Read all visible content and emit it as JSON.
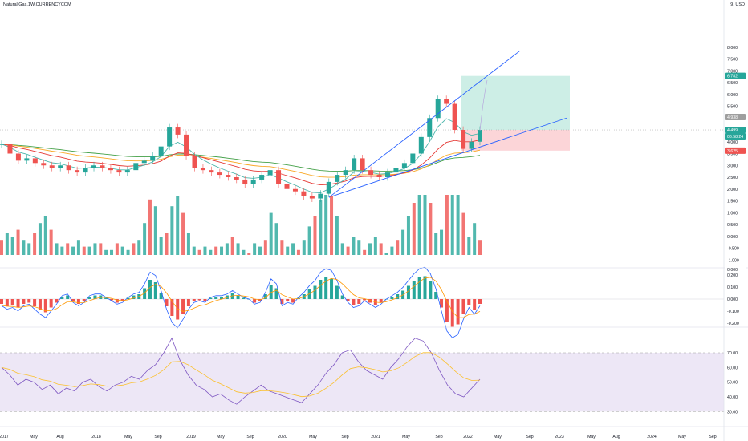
{
  "header": {
    "symbol": "Natural Gas",
    "sep1": ", ",
    "interval": "1W",
    "sep2": ", ",
    "source": "CURRENCYCOM",
    "currency": "9, USD"
  },
  "colors": {
    "up": "#26a69a",
    "down": "#ef5350",
    "channel": "#2962ff",
    "ema_red": "#e53935",
    "ema_orange": "#f9a825",
    "ema_green": "#43a047",
    "ema_teal": "#4db6ac",
    "macd_line": "#2962ff",
    "signal_line": "#ff9800",
    "rsi_line": "#7e57c2",
    "rsi_ma": "#fbc02d",
    "target_zone": "#cdeee6",
    "stop_zone": "#fcd5d8",
    "rsi_band": "#ede7f6"
  },
  "price_axis": {
    "ticks": [
      "8.000",
      "7.500",
      "7.000",
      "6.500",
      "6.000",
      "5.500",
      "5.000",
      "4.500",
      "4.000",
      "3.500",
      "3.000",
      "2.500",
      "2.000",
      "1.500",
      "1.000",
      "0.500",
      "0.000",
      "-0.500",
      "-1.000"
    ]
  },
  "macd_axis": {
    "ticks": [
      "0.200",
      "0.100",
      "0.000",
      "-0.100",
      "-0.200"
    ]
  },
  "rsi_axis": {
    "ticks": [
      "70.00",
      "60.00",
      "50.00",
      "40.00",
      "30.00"
    ]
  },
  "price_badges": {
    "target": "6.782",
    "channel_top": "4.938",
    "last": "4.499",
    "countdown": "06:58:24",
    "stop": "3.625",
    "pane_top": "0.000"
  },
  "x_axis": {
    "labels": [
      "2017",
      "May",
      "Aug",
      "2018",
      "May",
      "Sep",
      "2019",
      "May",
      "Sep",
      "2020",
      "May",
      "Sep",
      "2021",
      "May",
      "Sep",
      "2022",
      "May",
      "Sep",
      "2023",
      "May",
      "Aug",
      "2024",
      "May",
      "Sep"
    ]
  },
  "chart_data": [
    {
      "type": "candlestick",
      "title": "Natural Gas",
      "series": [
        {
          "name": "Natural Gas",
          "values": [
            3.9,
            3.5,
            3.2,
            3.3,
            3.1,
            3.0,
            2.9,
            3.0,
            2.8,
            2.7,
            2.9,
            3.0,
            2.9,
            2.8,
            2.7,
            2.8,
            3.1,
            3.2,
            3.4,
            3.8,
            4.6,
            4.3,
            3.4,
            2.9,
            2.8,
            2.7,
            2.6,
            2.5,
            2.4,
            2.2,
            2.4,
            2.6,
            2.8,
            2.2,
            2.0,
            1.9,
            1.7,
            1.6,
            1.8,
            2.3,
            2.6,
            2.8,
            3.3,
            2.8,
            2.6,
            2.5,
            2.7,
            2.9,
            3.1,
            3.5,
            4.2,
            5.0,
            5.8,
            5.6,
            4.5,
            3.7,
            4.0,
            4.5
          ]
        }
      ],
      "ylim": [
        -1.0,
        9.0
      ],
      "trade_position": {
        "entry": 4.499,
        "target": 6.782,
        "stop": 3.625
      }
    },
    {
      "type": "bar",
      "title": "",
      "series": [
        {
          "name": "",
          "values": [
            -0.04,
            -0.06,
            -0.05,
            -0.07,
            -0.04,
            -0.03,
            -0.06,
            -0.09,
            -0.11,
            -0.07,
            -0.03,
            0.02,
            0.03,
            -0.02,
            -0.04,
            -0.02,
            0.02,
            0.03,
            0.03,
            0.01,
            -0.01,
            -0.03,
            -0.02,
            0.01,
            0.03,
            0.04,
            0.09,
            0.16,
            0.14,
            0.05,
            -0.06,
            -0.14,
            -0.17,
            -0.12,
            -0.06,
            -0.02,
            -0.01,
            -0.02,
            0.01,
            0.02,
            0.02,
            0.03,
            0.05,
            0.03,
            0.01,
            0.0,
            -0.03,
            -0.02,
            0.04,
            0.12,
            0.09,
            -0.04,
            -0.02,
            -0.03,
            0.01,
            0.04,
            0.08,
            0.11,
            0.16,
            0.18,
            0.17,
            0.11,
            0.03,
            -0.02,
            -0.05,
            -0.04,
            -0.01,
            -0.03,
            -0.05,
            -0.03,
            0.0,
            0.02,
            0.04,
            0.07,
            0.11,
            0.15,
            0.18,
            0.19,
            0.15,
            0.06,
            -0.07,
            -0.19,
            -0.23,
            -0.21,
            -0.12,
            -0.05,
            -0.09,
            -0.04
          ]
        }
      ],
      "ylim": [
        -0.25,
        0.25
      ]
    },
    {
      "type": "line",
      "title": "",
      "series": [
        {
          "name": "",
          "values": [
            60,
            55,
            48,
            52,
            50,
            45,
            48,
            42,
            46,
            44,
            50,
            52,
            47,
            44,
            48,
            50,
            54,
            52,
            58,
            62,
            70,
            80,
            65,
            55,
            48,
            45,
            40,
            42,
            38,
            35,
            40,
            44,
            48,
            44,
            42,
            40,
            38,
            36,
            42,
            48,
            56,
            62,
            70,
            72,
            64,
            58,
            55,
            52,
            60,
            66,
            74,
            80,
            78,
            70,
            58,
            48,
            42,
            40,
            46,
            52
          ]
        }
      ],
      "ylim": [
        25,
        90
      ]
    }
  ]
}
